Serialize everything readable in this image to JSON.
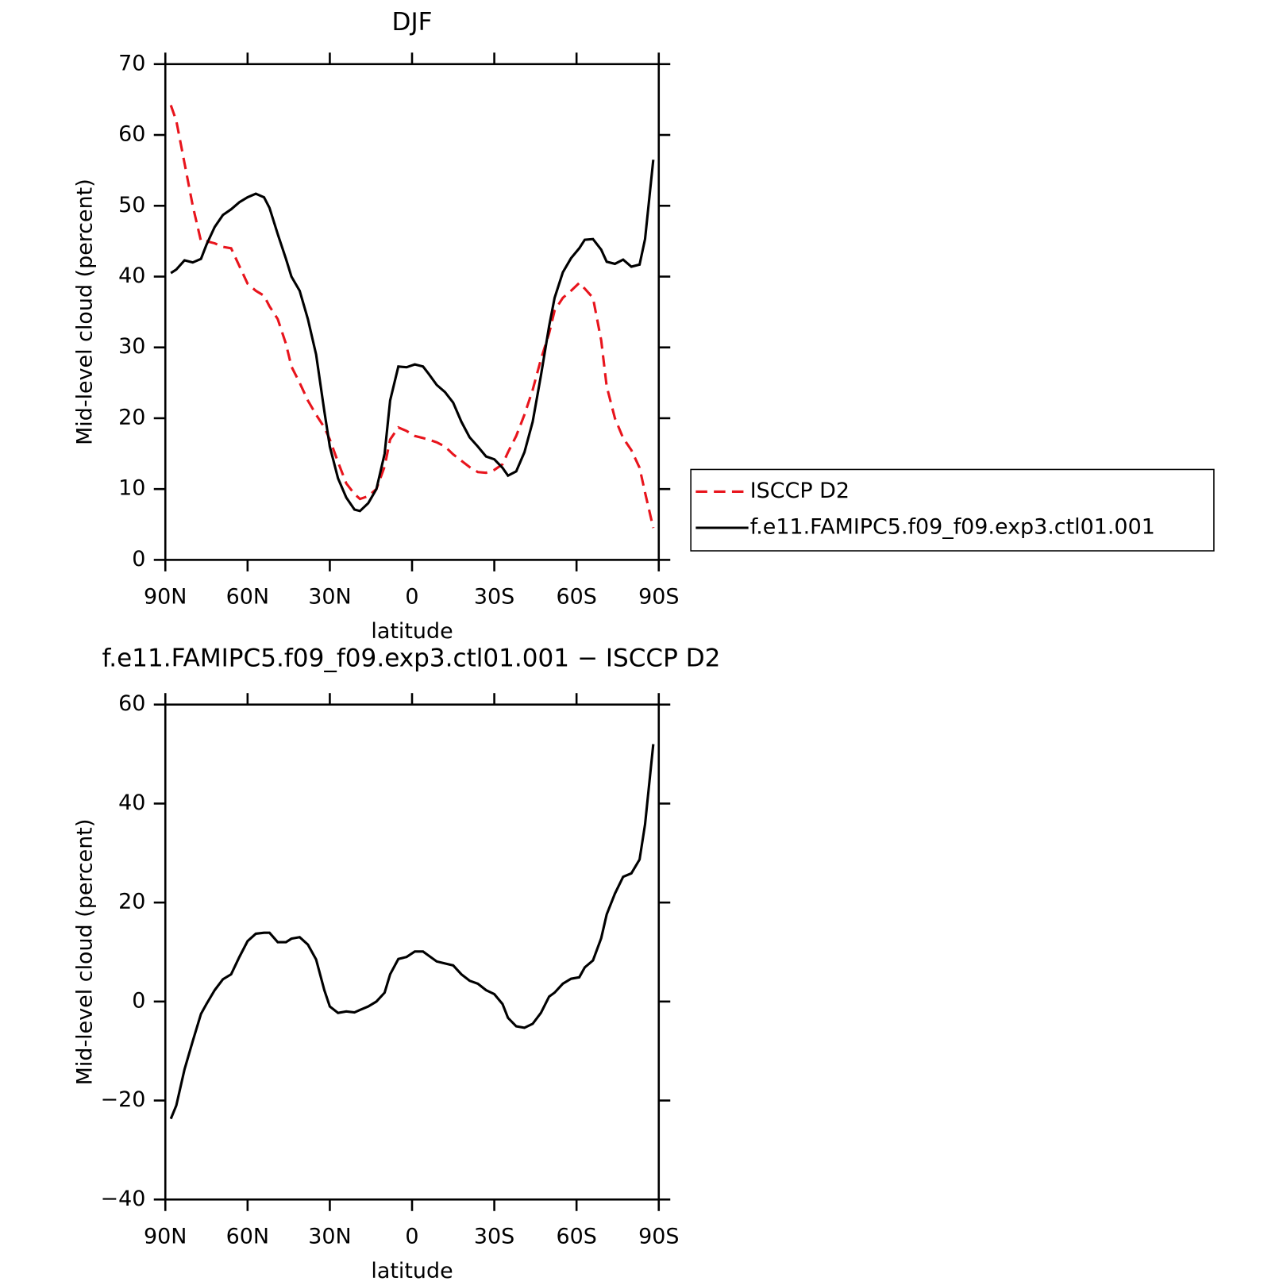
{
  "chart_data": [
    {
      "type": "line",
      "title": "DJF",
      "xlabel": "latitude",
      "ylabel": "Mid-level cloud (percent)",
      "x": [
        88,
        86,
        83,
        80,
        77,
        75,
        72,
        69,
        66,
        63,
        60,
        57,
        54,
        52,
        49,
        46,
        44,
        41,
        38,
        35,
        32,
        30,
        27,
        24,
        21,
        19,
        16,
        13,
        10,
        8,
        5,
        2,
        -1,
        -4,
        -6,
        -9,
        -12,
        -15,
        -18,
        -21,
        -24,
        -27,
        -30,
        -33,
        -35,
        -38,
        -41,
        -44,
        -47,
        -50,
        -52,
        -55,
        -58,
        -61,
        -63,
        -66,
        -69,
        -71,
        -74,
        -77,
        -80,
        -83,
        -85,
        -88
      ],
      "series": [
        {
          "name": "ISCCP D2",
          "color": "#e8141c",
          "dash": true,
          "values": [
            64.2,
            62,
            56,
            50,
            45,
            45,
            44.7,
            44.2,
            44,
            41.5,
            39,
            38,
            37.3,
            35.8,
            34,
            30.5,
            27.3,
            25,
            22.5,
            20.5,
            18.7,
            17,
            13.8,
            10.8,
            9.3,
            8.6,
            9,
            10,
            13.2,
            17,
            18.7,
            18.2,
            17.5,
            17.2,
            17,
            16.6,
            16,
            14.9,
            14,
            13.1,
            12.4,
            12.3,
            12.7,
            13.5,
            15.2,
            17.5,
            20.5,
            24,
            28.3,
            32,
            35.2,
            37,
            38,
            39.1,
            38.3,
            37,
            31,
            24.5,
            20,
            17.2,
            15.5,
            13,
            9.5,
            4.5
          ]
        },
        {
          "name": "f.e11.FAMIPC5.f09_f09.exp3.ctl01.001",
          "color": "#000000",
          "dash": false,
          "values": [
            40.5,
            41,
            42.3,
            42,
            42.5,
            44.5,
            47,
            48.7,
            49.5,
            50.5,
            51.2,
            51.7,
            51.2,
            49.7,
            46,
            42.5,
            40,
            38,
            34,
            29,
            21,
            16,
            11.5,
            8.8,
            7.1,
            6.9,
            8,
            10,
            15,
            22.5,
            27.3,
            27.2,
            27.6,
            27.3,
            26.3,
            24.7,
            23.7,
            22.2,
            19.5,
            17.3,
            16,
            14.6,
            14.2,
            13,
            11.9,
            12.5,
            15.2,
            19.5,
            26,
            33,
            37,
            40.6,
            42.6,
            44,
            45.2,
            45.3,
            43.8,
            42.1,
            41.8,
            42.4,
            41.4,
            41.7,
            45.3,
            56.5
          ]
        }
      ],
      "xlim": [
        90,
        -90
      ],
      "xticks": [
        {
          "value": 90,
          "label": "90N"
        },
        {
          "value": 60,
          "label": "60N"
        },
        {
          "value": 30,
          "label": "30N"
        },
        0,
        {
          "value": -30,
          "label": "30S"
        },
        {
          "value": -60,
          "label": "60S"
        },
        {
          "value": -90,
          "label": "90S"
        }
      ],
      "ylim": [
        0,
        70
      ],
      "yticks": [
        0,
        10,
        20,
        30,
        40,
        50,
        60,
        70
      ],
      "legend": "right"
    },
    {
      "type": "line",
      "title": "f.e11.FAMIPC5.f09_f09.exp3.ctl01.001 − ISCCP D2",
      "xlabel": "latitude",
      "ylabel": "Mid-level cloud (percent)",
      "x": [
        88,
        86,
        83,
        80,
        77,
        75,
        72,
        69,
        66,
        63,
        60,
        57,
        54,
        52,
        49,
        46,
        44,
        41,
        38,
        35,
        32,
        30,
        27,
        24,
        21,
        19,
        16,
        13,
        10,
        8,
        5,
        2,
        -1,
        -4,
        -6,
        -9,
        -12,
        -15,
        -18,
        -21,
        -24,
        -27,
        -30,
        -33,
        -35,
        -38,
        -41,
        -44,
        -47,
        -50,
        -52,
        -55,
        -58,
        -61,
        -63,
        -66,
        -69,
        -71,
        -74,
        -77,
        -80,
        -83,
        -85,
        -88
      ],
      "series": [
        {
          "color": "#000000",
          "dash": false,
          "values": [
            -23.7,
            -21,
            -13.7,
            -8,
            -2.5,
            -0.5,
            2.3,
            4.5,
            5.5,
            9,
            12.2,
            13.7,
            13.9,
            13.9,
            12,
            12,
            12.7,
            13,
            11.5,
            8.5,
            2.3,
            -1,
            -2.3,
            -2,
            -2.2,
            -1.7,
            -1,
            0,
            1.8,
            5.5,
            8.6,
            9,
            10.1,
            10.1,
            9.3,
            8.1,
            7.7,
            7.3,
            5.5,
            4.2,
            3.6,
            2.3,
            1.5,
            -0.5,
            -3.3,
            -5,
            -5.3,
            -4.5,
            -2.3,
            1,
            1.8,
            3.6,
            4.6,
            4.9,
            6.9,
            8.3,
            12.8,
            17.6,
            21.8,
            25.2,
            25.9,
            28.7,
            35.8,
            52
          ]
        }
      ],
      "xlim": [
        90,
        -90
      ],
      "xticks": [
        {
          "value": 90,
          "label": "90N"
        },
        {
          "value": 60,
          "label": "60N"
        },
        {
          "value": 30,
          "label": "30N"
        },
        0,
        {
          "value": -30,
          "label": "30S"
        },
        {
          "value": -60,
          "label": "60S"
        },
        {
          "value": -90,
          "label": "90S"
        }
      ],
      "ylim": [
        -40,
        60
      ],
      "yticks": [
        {
          "value": -40,
          "label": "−40"
        },
        {
          "value": -20,
          "label": "−20"
        },
        0,
        20,
        40,
        60
      ]
    }
  ]
}
